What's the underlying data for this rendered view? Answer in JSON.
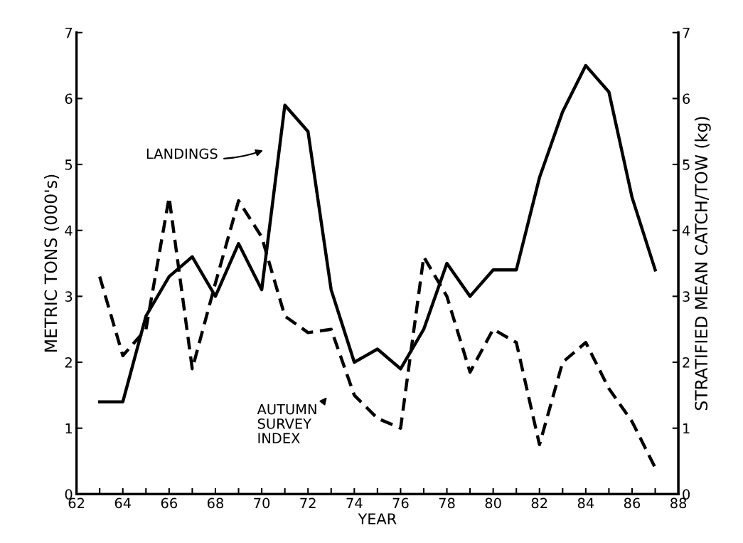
{
  "chart_data": {
    "type": "line",
    "xlabel": "YEAR",
    "ylabel": "METRIC TONS (000's)",
    "y2label": "STRATIFIED MEAN CATCH/TOW (kg)",
    "x": [
      63,
      64,
      65,
      66,
      67,
      68,
      69,
      70,
      71,
      72,
      73,
      74,
      75,
      76,
      77,
      78,
      79,
      80,
      81,
      82,
      83,
      84,
      85,
      86,
      87
    ],
    "series": [
      {
        "color": "#000000",
        "line_style": "solid",
        "values": [
          1.4,
          1.4,
          2.7,
          3.3,
          3.6,
          3.0,
          3.8,
          3.1,
          5.9,
          5.5,
          3.1,
          2.0,
          2.2,
          1.9,
          2.5,
          3.5,
          3.0,
          3.4,
          3.4,
          4.8,
          5.8,
          6.5,
          6.1,
          4.5,
          3.4
        ]
      },
      {
        "color": "#000000",
        "line_style": "dashed",
        "axis": "y2",
        "values": [
          3.3,
          2.1,
          2.5,
          4.5,
          1.9,
          3.2,
          4.45,
          3.9,
          2.7,
          2.45,
          2.5,
          1.5,
          1.15,
          1.0,
          3.6,
          3.0,
          1.85,
          2.5,
          2.3,
          0.75,
          2.0,
          2.3,
          1.6,
          1.1,
          0.4
        ]
      }
    ],
    "xlim": [
      62,
      88
    ],
    "xticks": [
      62,
      {
        "value": 63,
        "label": null
      },
      64,
      {
        "value": 65,
        "label": null
      },
      66,
      {
        "value": 67,
        "label": null
      },
      68,
      {
        "value": 69,
        "label": null
      },
      70,
      {
        "value": 71,
        "label": null
      },
      72,
      {
        "value": 73,
        "label": null
      },
      74,
      {
        "value": 75,
        "label": null
      },
      76,
      {
        "value": 77,
        "label": null
      },
      78,
      {
        "value": 79,
        "label": null
      },
      80,
      {
        "value": 81,
        "label": null
      },
      82,
      {
        "value": 83,
        "label": null
      },
      84,
      {
        "value": 85,
        "label": null
      },
      86,
      {
        "value": 87,
        "label": null
      },
      88
    ],
    "ylim": [
      0,
      7
    ],
    "yticks": [
      0,
      1,
      2,
      3,
      4,
      5,
      6,
      7
    ],
    "y2lim": [
      0,
      7
    ],
    "y2ticks": [
      0,
      1,
      2,
      3,
      4,
      5,
      6,
      7
    ],
    "grid": false,
    "marker": "none",
    "annotations": [
      "LANDINGS",
      "AUTUMN\nSURVEY\nINDEX"
    ]
  }
}
